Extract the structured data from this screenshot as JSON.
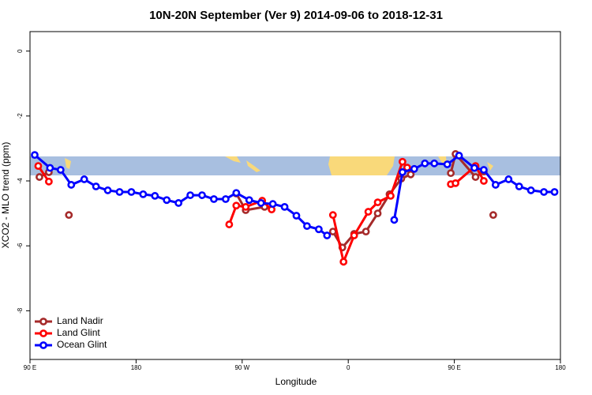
{
  "chart_data": {
    "type": "line",
    "title": "10N-20N September (Ver 9)   2014-09-06 to 2018-12-31",
    "xlabel": "Longitude",
    "ylabel": "XCO2 - MLO trend (ppm)",
    "xlim": [
      90,
      540
    ],
    "xticks": [
      {
        "value": 90,
        "label": "90 E"
      },
      180,
      {
        "value": 270,
        "label": "90 W"
      },
      {
        "value": 360,
        "label": "0"
      },
      {
        "value": 450,
        "label": "90 E"
      },
      {
        "value": 540,
        "label": "180"
      }
    ],
    "ylim": [
      -9.5,
      0.6
    ],
    "yticks": [
      0,
      -2,
      -4,
      -6,
      -8
    ],
    "legend": "bottom-left",
    "series": [
      {
        "name": "Land Nadir",
        "color": "#a52a2a",
        "x": [
          98,
          106,
          null,
          123,
          null,
          265,
          273,
          289,
          null,
          347,
          355,
          365,
          375,
          385,
          395,
          405,
          413,
          null,
          447,
          451,
          468,
          475,
          null,
          483
        ],
        "values": [
          -3.88,
          -3.73,
          null,
          -5.05,
          null,
          -4.39,
          -4.9,
          -4.8,
          null,
          -5.56,
          -6.05,
          -5.63,
          -5.56,
          -5.0,
          -4.41,
          -3.93,
          -3.8,
          null,
          -3.76,
          -3.17,
          -3.88,
          -3.71,
          null,
          -5.05
        ]
      },
      {
        "name": "Land Glint",
        "color": "#ff0000",
        "x": [
          97,
          106,
          null,
          259,
          265,
          273,
          287,
          295,
          null,
          347,
          356,
          365,
          377,
          385,
          396,
          406,
          410,
          null,
          447,
          451,
          468,
          475
        ],
        "values": [
          -3.54,
          -4.02,
          null,
          -5.34,
          -4.76,
          -4.8,
          -4.61,
          -4.88,
          null,
          -5.05,
          -6.49,
          -5.68,
          -4.95,
          -4.66,
          -4.46,
          -3.41,
          -3.59,
          null,
          -4.1,
          -4.07,
          -3.54,
          -4.0
        ]
      },
      {
        "name": "Ocean Glint",
        "color": "#0000ff",
        "x": [
          94,
          107,
          116,
          125,
          136,
          146,
          156,
          166,
          176,
          186,
          196,
          206,
          216,
          226,
          236,
          246,
          256,
          265,
          276,
          286,
          296,
          306,
          316,
          325,
          335,
          342,
          null,
          399,
          406,
          416,
          425,
          433,
          444,
          454,
          467,
          475,
          485,
          496,
          505,
          515,
          526,
          535
        ],
        "values": [
          -3.2,
          -3.6,
          -3.66,
          -4.12,
          -3.95,
          -4.17,
          -4.29,
          -4.34,
          -4.34,
          -4.41,
          -4.46,
          -4.59,
          -4.68,
          -4.44,
          -4.44,
          -4.56,
          -4.56,
          -4.37,
          -4.59,
          -4.68,
          -4.71,
          -4.8,
          -5.07,
          -5.39,
          -5.49,
          -5.68,
          null,
          -5.2,
          -3.73,
          -3.63,
          -3.46,
          -3.46,
          -3.49,
          -3.22,
          -3.6,
          -3.66,
          -4.12,
          -3.95,
          -4.17,
          -4.29,
          -4.34,
          -4.34
        ]
      }
    ]
  }
}
